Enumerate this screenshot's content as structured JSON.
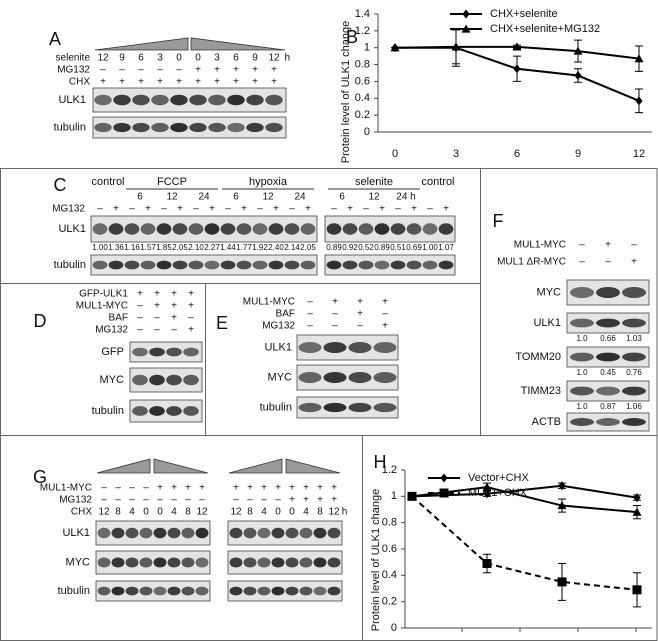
{
  "panels": {
    "A": {
      "label": "A",
      "rows": [
        {
          "name": "selenite",
          "cells": [
            "12",
            "9",
            "6",
            "3",
            "0",
            "0",
            "3",
            "6",
            "9",
            "12"
          ],
          "unit": "h"
        },
        {
          "name": "MG132",
          "cells": [
            "–",
            "–",
            "–",
            "–",
            "–",
            "+",
            "+",
            "+",
            "+",
            "+"
          ]
        },
        {
          "name": "CHX",
          "cells": [
            "+",
            "+",
            "+",
            "+",
            "+",
            "+",
            "+",
            "+",
            "+",
            "+"
          ]
        }
      ],
      "blots": [
        {
          "name": "ULK1"
        },
        {
          "name": "tubulin"
        }
      ]
    },
    "C": {
      "label": "C",
      "groups": [
        {
          "name": "control"
        },
        {
          "name": "FCCP",
          "times": [
            "6",
            "12",
            "24"
          ]
        },
        {
          "name": "hypoxia",
          "times": [
            "6",
            "12",
            "24"
          ]
        },
        {
          "name": "selenite",
          "times": [
            "6",
            "12",
            "24 h"
          ]
        },
        {
          "name": "control"
        }
      ],
      "rows": [
        {
          "name": "MG132",
          "cells": [
            "–",
            "+",
            "–",
            "+",
            "–",
            "+",
            "–",
            "+",
            "–",
            "+",
            "–",
            "+",
            "–",
            "+",
            "–",
            "+",
            "–",
            "+",
            "–",
            "+",
            "–",
            "+"
          ]
        }
      ],
      "blots": [
        {
          "name": "ULK1",
          "quant": [
            "1.00",
            "1.36",
            "1.16",
            "1.57",
            "1.85",
            "2.05",
            "2.10",
            "2.27",
            "1.44",
            "1.77",
            "1.92",
            "2.40",
            "2.14",
            "2.05",
            "0.89",
            "0.92",
            "0.52",
            "0.89",
            "0.51",
            "0.69",
            "1.00",
            "1.07"
          ]
        },
        {
          "name": "tubulin"
        }
      ]
    },
    "D": {
      "label": "D",
      "rows": [
        {
          "name": "GFP-ULK1",
          "cells": [
            "+",
            "+",
            "+",
            "+"
          ]
        },
        {
          "name": "MUL1-MYC",
          "cells": [
            "–",
            "+",
            "+",
            "+"
          ]
        },
        {
          "name": "BAF",
          "cells": [
            "–",
            "–",
            "+",
            "–"
          ]
        },
        {
          "name": "MG132",
          "cells": [
            "–",
            "–",
            "–",
            "+"
          ]
        }
      ],
      "blots": [
        {
          "name": "GFP"
        },
        {
          "name": "MYC"
        },
        {
          "name": "tubulin"
        }
      ]
    },
    "E": {
      "label": "E",
      "rows": [
        {
          "name": "MUL1-MYC",
          "cells": [
            "–",
            "+",
            "+",
            "+"
          ]
        },
        {
          "name": "BAF",
          "cells": [
            "–",
            "–",
            "+",
            "–"
          ]
        },
        {
          "name": "MG132",
          "cells": [
            "–",
            "–",
            "–",
            "+"
          ]
        }
      ],
      "blots": [
        {
          "name": "ULK1"
        },
        {
          "name": "MYC"
        },
        {
          "name": "tubulin"
        }
      ]
    },
    "F": {
      "label": "F",
      "rows": [
        {
          "name": "MUL1-MYC",
          "cells": [
            "–",
            "+",
            "–"
          ]
        },
        {
          "name": "MUL1 ΔR-MYC",
          "cells": [
            "–",
            "–",
            "+"
          ]
        }
      ],
      "blots": [
        {
          "name": "MYC"
        },
        {
          "name": "ULK1",
          "quant": [
            "1.0",
            "0.66",
            "1.03"
          ]
        },
        {
          "name": "TOMM20",
          "quant": [
            "1.0",
            "0.45",
            "0.76"
          ]
        },
        {
          "name": "TIMM23",
          "quant": [
            "1.0",
            "0.87",
            "1.06"
          ]
        },
        {
          "name": "ACTB"
        }
      ]
    },
    "G": {
      "label": "G",
      "rows": [
        {
          "name": "MUL1-MYC",
          "cells": [
            "–",
            "–",
            "–",
            "–",
            "+",
            "+",
            "+",
            "+",
            "+",
            "+",
            "+",
            "+",
            "+",
            "+",
            "+",
            "+"
          ]
        },
        {
          "name": "MG132",
          "cells": [
            "–",
            "–",
            "–",
            "–",
            "–",
            "–",
            "–",
            "–",
            "–",
            "–",
            "–",
            "–",
            "+",
            "+",
            "+",
            "+"
          ]
        },
        {
          "name": "CHX",
          "cells": [
            "12",
            "8",
            "4",
            "0",
            "0",
            "4",
            "8",
            "12",
            "12",
            "8",
            "4",
            "0",
            "0",
            "4",
            "8",
            "12"
          ],
          "unit": "h"
        }
      ],
      "blots": [
        {
          "name": "ULK1"
        },
        {
          "name": "MYC"
        },
        {
          "name": "tubulin"
        }
      ]
    }
  },
  "chart_data": [
    {
      "type": "line",
      "label": "B",
      "y_label": "Protein level of ULK1 change",
      "categories": [
        "0",
        "3",
        "6",
        "9",
        "12"
      ],
      "ylim": [
        0,
        1.4
      ],
      "yticks": [
        0,
        0.2,
        0.4,
        0.6,
        0.8,
        1,
        1.2,
        1.4
      ],
      "series": [
        {
          "name": "CHX+selenite",
          "color": "#000000",
          "marker": "diamond",
          "values": [
            1.0,
            1.0,
            0.75,
            0.67,
            0.37
          ],
          "errors": [
            0,
            0.22,
            0.15,
            0.08,
            0.14
          ]
        },
        {
          "name": "CHX+selenite+MG132",
          "color": "#000000",
          "marker": "triangle",
          "values": [
            1.0,
            1.01,
            1.01,
            0.96,
            0.87
          ],
          "errors": [
            0,
            0.2,
            0.02,
            0.13,
            0.15
          ]
        }
      ]
    },
    {
      "type": "line",
      "label": "H",
      "y_label": "Protein level of ULK1 change",
      "categories": [
        null,
        null,
        null,
        null
      ],
      "ylim": [
        0,
        1.2
      ],
      "yticks": [
        0,
        0.2,
        0.4,
        0.6,
        0.8,
        1,
        1.2
      ],
      "series": [
        {
          "name": "Vector+CHX",
          "color": "#000000",
          "marker": "diamond",
          "values": [
            1.0,
            1.02,
            1.08,
            0.99
          ],
          "errors": [
            0,
            0.02,
            0.02,
            0.02
          ]
        },
        {
          "color": "#000000",
          "marker": "triangle",
          "values": [
            1.0,
            1.07,
            0.93,
            0.88
          ],
          "errors": [
            0,
            0.03,
            0.05,
            0.05
          ]
        },
        {
          "name": "MUL1+CHX",
          "color": "#000000",
          "marker": "square",
          "dashed": true,
          "values": [
            1.0,
            0.49,
            0.35,
            0.29
          ],
          "errors": [
            0,
            0.07,
            0.14,
            0.13
          ]
        }
      ]
    }
  ]
}
